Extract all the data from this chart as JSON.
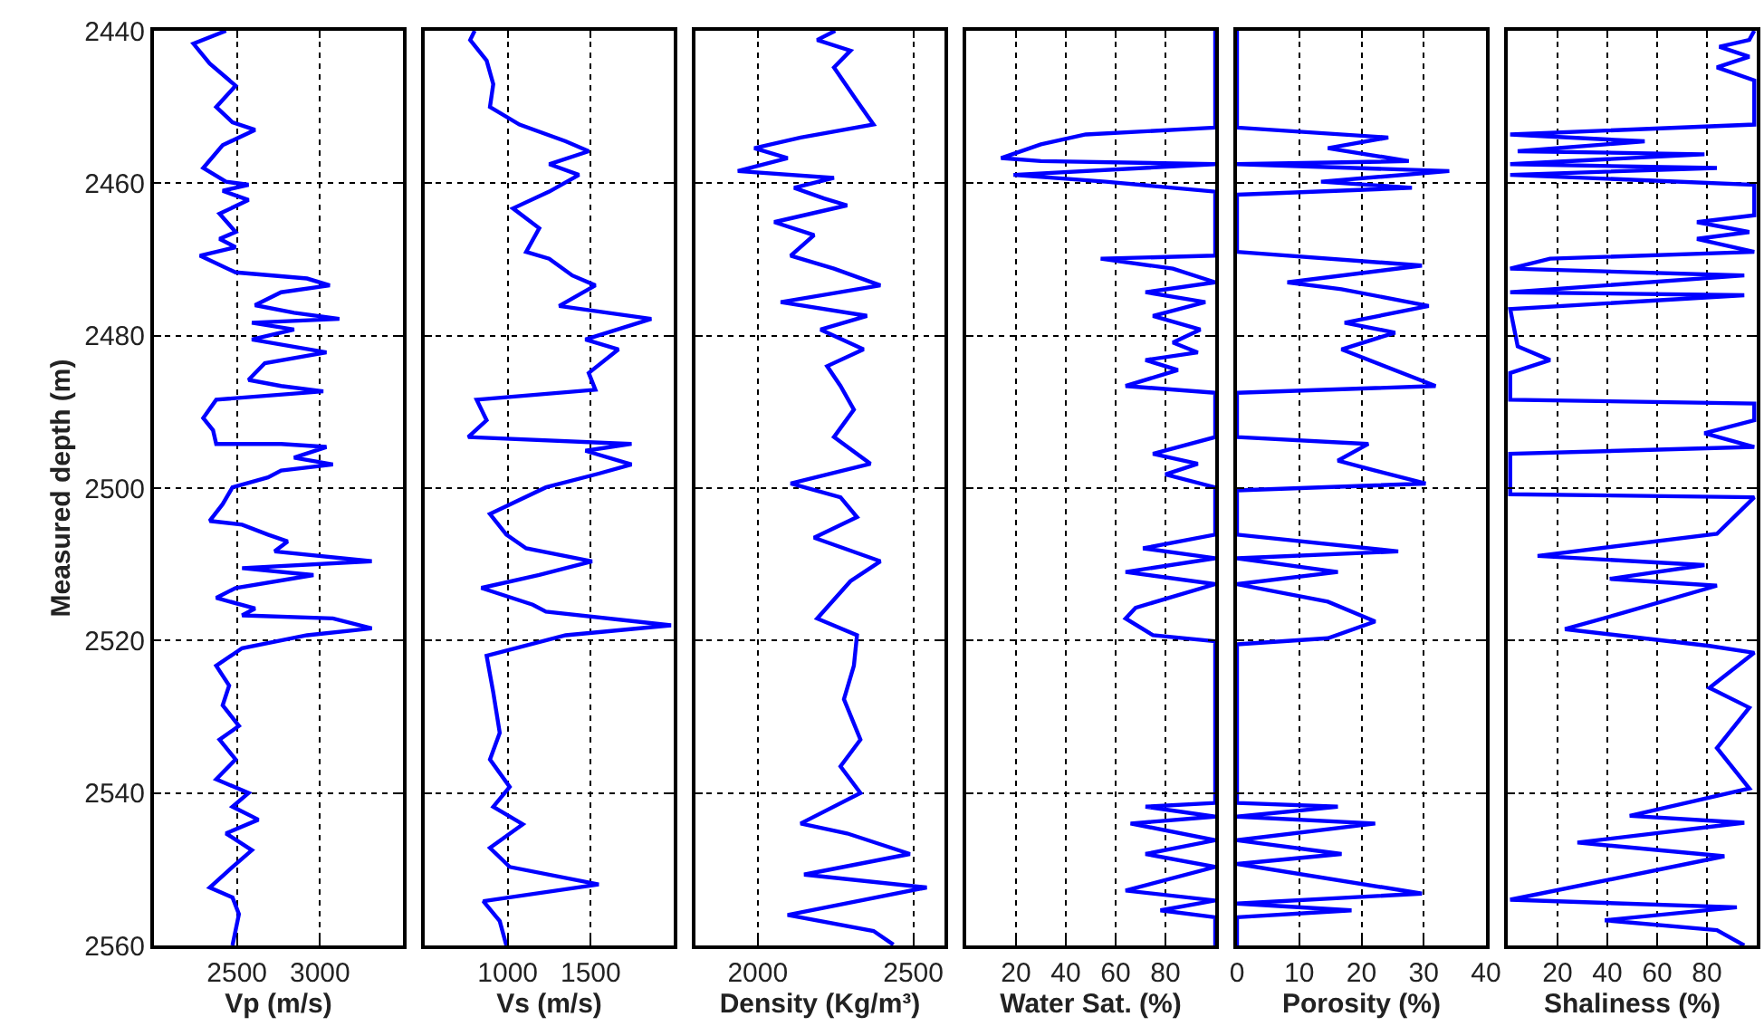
{
  "chart_data": [
    {
      "type": "line",
      "xlabel": "Vp (m/s)",
      "ylabel": "Measured depth (m)",
      "xlim": [
        2000,
        3500
      ],
      "xticks": [
        2500,
        3000
      ],
      "ylim": [
        2560,
        2440
      ],
      "yticks": [
        2440,
        2460,
        2480,
        2500,
        2520,
        2540,
        2560
      ],
      "grid": true,
      "series": [
        {
          "color": "#0000ff",
          "x": [
            2434,
            2238,
            2336,
            2492,
            2375,
            2473,
            2609,
            2414,
            2297,
            2434,
            2570,
            2414,
            2570,
            2395,
            2492,
            2395,
            2492,
            2277,
            2492,
            2922,
            3059,
            2766,
            2609,
            2844,
            3117,
            2590,
            2844,
            2590,
            3039,
            2668,
            2570,
            2766,
            3020,
            2375,
            2297,
            2356,
            2375,
            2766,
            3039,
            2844,
            3078,
            2766,
            2687,
            2473,
            2414,
            2336,
            2531,
            2687,
            2805,
            2727,
            3312,
            2531,
            2961,
            2492,
            2375,
            2609,
            2531,
            3078,
            3312,
            2922,
            2531,
            2375,
            2453,
            2414,
            2512,
            2395,
            2492,
            2375,
            2570,
            2473,
            2629,
            2434,
            2590,
            2473,
            2336,
            2473,
            2512,
            2473
          ],
          "values": [
            2440,
            2441.7,
            2444.3,
            2447.2,
            2450,
            2452,
            2453,
            2455,
            2458,
            2459.8,
            2460.2,
            2461,
            2462.2,
            2464,
            2466.4,
            2467.3,
            2468.4,
            2469.5,
            2471.7,
            2472.5,
            2473.4,
            2474.3,
            2476,
            2477,
            2477.8,
            2478.3,
            2479.2,
            2480.5,
            2482.2,
            2483.6,
            2485.8,
            2486.6,
            2487.3,
            2488.4,
            2490.8,
            2492.4,
            2494.2,
            2494.2,
            2494.6,
            2496,
            2496.9,
            2497.7,
            2498.6,
            2499.9,
            2502.1,
            2504.3,
            2504.8,
            2506.1,
            2507,
            2508.3,
            2509.6,
            2510.5,
            2511.4,
            2513.1,
            2514.4,
            2515.8,
            2516.7,
            2517.1,
            2518.4,
            2519.3,
            2521,
            2523.3,
            2525.9,
            2528.5,
            2531.2,
            2533,
            2535.6,
            2538.2,
            2540,
            2541.8,
            2543.5,
            2545.3,
            2547.5,
            2549.7,
            2552.4,
            2553.7,
            2555.9,
            2560
          ]
        }
      ]
    },
    {
      "type": "line",
      "xlabel": "Vs (m/s)",
      "xlim": [
        500,
        2000
      ],
      "xticks": [
        1000,
        1500
      ],
      "ylim": [
        2560,
        2440
      ],
      "yticks": [
        2440,
        2460,
        2480,
        2500,
        2520,
        2540,
        2560
      ],
      "grid": true,
      "tick_labels": "x",
      "series": [
        {
          "color": "#0000ff",
          "x": [
            801,
            774,
            873,
            913,
            893,
            1071,
            1349,
            1488,
            1250,
            1429,
            1250,
            1032,
            1190,
            1111,
            1250,
            1389,
            1528,
            1310,
            1865,
            1468,
            1667,
            1488,
            1528,
            813,
            873,
            762,
            1746,
            1468,
            1746,
            1548,
            1230,
            893,
            992,
            1111,
            1508,
            1190,
            841,
            1151,
            1230,
            1984,
            1349,
            873,
            913,
            952,
            893,
            1012,
            913,
            1091,
            893,
            1012,
            1548,
            853,
            952,
            992
          ],
          "values": [
            2440,
            2441.2,
            2443.9,
            2447,
            2450,
            2452.3,
            2454.5,
            2455.8,
            2457.5,
            2458.9,
            2461.1,
            2463.3,
            2465.9,
            2469,
            2469.9,
            2472.1,
            2473.4,
            2476.1,
            2477.8,
            2480.5,
            2481.8,
            2484.9,
            2487.1,
            2488.4,
            2491.1,
            2493.3,
            2494.2,
            2495.1,
            2496.9,
            2498.1,
            2499.9,
            2503.4,
            2506.1,
            2507.9,
            2509.6,
            2511.4,
            2513.1,
            2515.3,
            2516.2,
            2518,
            2519.3,
            2522,
            2526.8,
            2532.1,
            2535.6,
            2539.2,
            2541.8,
            2544.1,
            2547.2,
            2549.7,
            2552,
            2554.2,
            2556.8,
            2560
          ]
        }
      ]
    },
    {
      "type": "line",
      "xlabel": "Density (Kg/m³)",
      "xlim": [
        1800,
        2600
      ],
      "xticks": [
        2000,
        2500
      ],
      "ylim": [
        2560,
        2440
      ],
      "yticks": [
        2440,
        2460,
        2480,
        2500,
        2520,
        2540,
        2560
      ],
      "grid": true,
      "tick_labels": "x",
      "series": [
        {
          "color": "#0000ff",
          "x": [
            2249,
            2191,
            2298,
            2245,
            2319,
            2372,
            2138,
            1989,
            2096,
            1936,
            2245,
            2117,
            2213,
            2287,
            2053,
            2181,
            2106,
            2245,
            2394,
            2074,
            2351,
            2202,
            2340,
            2223,
            2266,
            2309,
            2245,
            2362,
            2106,
            2266,
            2319,
            2181,
            2394,
            2298,
            2191,
            2319,
            2309,
            2277,
            2330,
            2266,
            2330,
            2138,
            2287,
            2489,
            2149,
            2543,
            2096,
            2372,
            2436
          ],
          "values": [
            2440,
            2441.2,
            2442.6,
            2444.8,
            2449.2,
            2452.3,
            2454,
            2455.4,
            2456.7,
            2458.4,
            2459.3,
            2460.6,
            2462,
            2462.9,
            2465.1,
            2466.8,
            2469.5,
            2471.2,
            2473.4,
            2475.6,
            2477.4,
            2479.2,
            2481.8,
            2484,
            2486.6,
            2489.7,
            2493.3,
            2496.8,
            2499.4,
            2501.2,
            2503.8,
            2506.5,
            2509.6,
            2512.2,
            2517.1,
            2519.3,
            2523.3,
            2527.7,
            2533,
            2536.5,
            2540,
            2544,
            2545.3,
            2548,
            2550.7,
            2552.4,
            2556,
            2558.1,
            2559.9
          ]
        }
      ]
    },
    {
      "type": "line",
      "xlabel": "Water Sat. (%)",
      "xlim": [
        0,
        100
      ],
      "xticks": [
        20,
        40,
        60,
        80
      ],
      "ylim": [
        2560,
        2440
      ],
      "yticks": [
        2440,
        2460,
        2480,
        2500,
        2520,
        2540,
        2560
      ],
      "grid": true,
      "tick_labels": "x",
      "series": [
        {
          "color": "#0000ff",
          "x": [
            100,
            100,
            48,
            30,
            14,
            30,
            100,
            19,
            56,
            100,
            100,
            54,
            83,
            100,
            72,
            96,
            75,
            94,
            83,
            93,
            72,
            85,
            64,
            100,
            100,
            75,
            93,
            80,
            100,
            100,
            71,
            100,
            64,
            100,
            68,
            64,
            75,
            100,
            100,
            72,
            100,
            66,
            100,
            72,
            100,
            64,
            100,
            78,
            100,
            100
          ],
          "values": [
            2440,
            2452.7,
            2453.6,
            2454.9,
            2456.7,
            2457.1,
            2457.5,
            2458.9,
            2459.8,
            2461.1,
            2469.5,
            2469.9,
            2471.2,
            2473,
            2474.3,
            2475.6,
            2477.4,
            2479.2,
            2480.9,
            2482.2,
            2483.2,
            2484.5,
            2486.6,
            2487.5,
            2493.3,
            2495.5,
            2496.8,
            2498.2,
            2499.9,
            2506.1,
            2507.9,
            2509.2,
            2511,
            2512.6,
            2515.7,
            2517.1,
            2519.3,
            2520.1,
            2541.3,
            2541.8,
            2543.1,
            2544,
            2546.2,
            2548,
            2549.7,
            2552.8,
            2554.1,
            2555.4,
            2556.3,
            2560
          ]
        }
      ]
    },
    {
      "type": "line",
      "xlabel": "Porosity (%)",
      "xlim": [
        0,
        40
      ],
      "xticks": [
        0,
        10,
        20,
        30,
        40
      ],
      "ylim": [
        2560,
        2440
      ],
      "yticks": [
        2440,
        2460,
        2480,
        2500,
        2520,
        2540,
        2560
      ],
      "grid": true,
      "tick_labels": "x",
      "series": [
        {
          "color": "#0000ff",
          "x": [
            0,
            0,
            24.3,
            14.6,
            27.6,
            0,
            34.1,
            13.5,
            28.1,
            0,
            0,
            29.7,
            8.1,
            16.8,
            30.8,
            17.3,
            25.4,
            16.8,
            31.9,
            0,
            0,
            21.1,
            16.2,
            22.2,
            30.3,
            0,
            0,
            25.9,
            0,
            16.2,
            0,
            14.6,
            22.2,
            14.6,
            0,
            0,
            16.2,
            0,
            22.2,
            0,
            16.8,
            0,
            29.7,
            0,
            18.4,
            0,
            0
          ],
          "values": [
            2440,
            2452.7,
            2454,
            2455.4,
            2457.1,
            2457.5,
            2458.4,
            2459.8,
            2460.6,
            2461.5,
            2469,
            2470.8,
            2473,
            2473.9,
            2476.1,
            2478.3,
            2479.6,
            2481.8,
            2486.6,
            2487.5,
            2493.3,
            2494.2,
            2496.4,
            2497.7,
            2499.4,
            2500.3,
            2506.1,
            2508.3,
            2509.2,
            2511,
            2512.6,
            2514.9,
            2517.5,
            2519.7,
            2520.5,
            2541.3,
            2541.8,
            2543.1,
            2544,
            2546.2,
            2548,
            2549.3,
            2553.2,
            2554.5,
            2555.4,
            2556.3,
            2560
          ]
        }
      ]
    },
    {
      "type": "line",
      "xlabel": "Shaliness (%)",
      "xlim": [
        0,
        100
      ],
      "xticks": [
        20,
        40,
        60,
        80
      ],
      "ylim": [
        2560,
        2440
      ],
      "yticks": [
        2440,
        2460,
        2480,
        2500,
        2520,
        2540,
        2560
      ],
      "grid": true,
      "tick_labels": "x",
      "series": [
        {
          "color": "#0000ff",
          "x": [
            99,
            97,
            85,
            97,
            84,
            99,
            99,
            1,
            55,
            4,
            79,
            1,
            84,
            1,
            99,
            99,
            76,
            97,
            76,
            99,
            17,
            1,
            95,
            1,
            95,
            1,
            4,
            17,
            1,
            1,
            99,
            99,
            79,
            99,
            1,
            1,
            99,
            84,
            12,
            79,
            41,
            84,
            47,
            23,
            81,
            99,
            81,
            97,
            84,
            97,
            49,
            95,
            28,
            87,
            1,
            92,
            39,
            84,
            95
          ],
          "values": [
            2440,
            2441.2,
            2442.1,
            2443.4,
            2444.8,
            2446.5,
            2452.3,
            2453.6,
            2454.5,
            2455.8,
            2456.2,
            2457.5,
            2458,
            2458.9,
            2460.2,
            2464.2,
            2465.1,
            2466.4,
            2467.3,
            2469,
            2469.9,
            2471.2,
            2472.1,
            2474.3,
            2474.7,
            2476.5,
            2481.4,
            2483.2,
            2484.9,
            2488.4,
            2488.9,
            2491.1,
            2492.8,
            2494.6,
            2495.5,
            2500.8,
            2501.2,
            2506,
            2508.9,
            2510.1,
            2511.9,
            2512.8,
            2516.3,
            2518.5,
            2520.7,
            2521.6,
            2526.2,
            2528.8,
            2534.1,
            2539.4,
            2543,
            2543.9,
            2546.5,
            2548.3,
            2554,
            2555,
            2556.7,
            2558,
            2560
          ]
        }
      ]
    }
  ]
}
